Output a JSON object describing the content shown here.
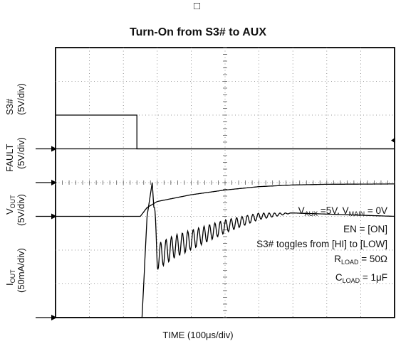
{
  "figure": {
    "marker": "□",
    "title": "Turn-On from S3# to AUX",
    "xlabel": "TIME (100μs/div)"
  },
  "ylabels": {
    "s3": "S3#",
    "s3_scale": "(5V/div)",
    "fault": "FAULT",
    "fault_scale": "(5V/div)",
    "vout_main": "V",
    "vout_sub": "OUT",
    "vout_scale": "(5V/div)",
    "iout_main": "I",
    "iout_sub": "OUT",
    "iout_scale": "(50mA/div)"
  },
  "annotations": {
    "line1": {
      "a": "V",
      "a_sub": "AUX",
      "b": " =5V, V",
      "b_sub": "MAIN",
      "c": " = 0V"
    },
    "line2": "EN = [ON]",
    "line3": "S3# toggles from [HI] to [LOW]",
    "line4": {
      "a": "R",
      "a_sub": "LOAD",
      "b": " = 50Ω"
    },
    "line5": {
      "a": "C",
      "a_sub": "LOAD",
      "b": " = 1μF"
    }
  },
  "chart_data": {
    "type": "line",
    "x_unit": "μs",
    "x_range": [
      0,
      1000
    ],
    "x_divisions": 10,
    "y_divisions": 8,
    "grid": true,
    "trigger_marker": "right edge, S3# level",
    "series": [
      {
        "name": "S3#",
        "unit": "V",
        "ground_div": 5.0,
        "x": [
          0,
          240,
          240,
          1000
        ],
        "y": [
          5,
          5,
          0,
          0
        ]
      },
      {
        "name": "FAULT",
        "unit": "V",
        "ground_div": 4.0,
        "x": [
          0,
          1000
        ],
        "y": [
          5,
          5
        ]
      },
      {
        "name": "VOUT",
        "unit": "V",
        "ground_div": 3.0,
        "x": [
          0,
          250,
          270,
          300,
          400,
          500,
          600,
          700,
          800,
          1000
        ],
        "y": [
          0,
          0,
          1.3,
          2.2,
          3.2,
          3.9,
          4.4,
          4.65,
          4.75,
          4.8
        ]
      },
      {
        "name": "IOUT",
        "unit": "mA",
        "ground_div": 0.0,
        "x": [
          0,
          255,
          270,
          285,
          300,
          350,
          400,
          500,
          600,
          700,
          1000
        ],
        "y": [
          0,
          0,
          150,
          200,
          90,
          105,
          115,
          135,
          150,
          155,
          150
        ]
      }
    ],
    "iout_ripple_mA": 20
  }
}
